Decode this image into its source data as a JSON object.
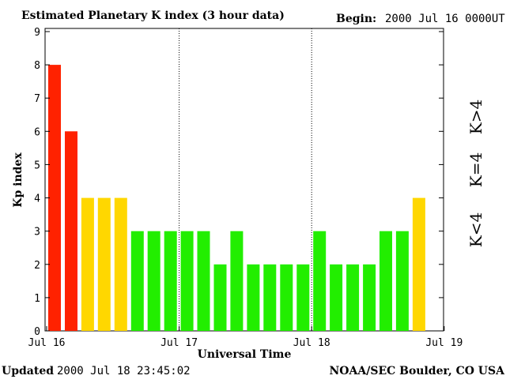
{
  "header": {
    "title": "Estimated Planetary K index (3 hour data)",
    "begin_label": "Begin:",
    "begin_value": "2000 Jul 16 0000UT"
  },
  "footer": {
    "updated_label": "Updated",
    "updated_value": "2000 Jul 18 23:45:02",
    "source": "NOAA/SEC Boulder, CO USA"
  },
  "legend": {
    "high": "K>4",
    "equal": "K=4",
    "low": "K<4"
  },
  "colors": {
    "high": "#ff2200",
    "equal": "#ffd700",
    "low": "#22ee00",
    "frame": "#000000"
  },
  "chart_data": {
    "type": "bar",
    "title": "Estimated Planetary K index (3 hour data)",
    "xlabel": "Universal Time",
    "ylabel": "Kp index",
    "ylim": [
      0,
      9
    ],
    "yticks": [
      0,
      1,
      2,
      3,
      4,
      5,
      6,
      7,
      8,
      9
    ],
    "xticks": [
      "Jul 16",
      "Jul 17",
      "Jul 18",
      "Jul 19"
    ],
    "day_separators": [
      "Jul 17",
      "Jul 18"
    ],
    "bar_interval_hours": 3,
    "values": [
      8,
      6,
      4,
      4,
      4,
      3,
      3,
      3,
      3,
      3,
      2,
      3,
      2,
      2,
      2,
      2,
      3,
      2,
      2,
      2,
      3,
      3,
      4
    ]
  }
}
